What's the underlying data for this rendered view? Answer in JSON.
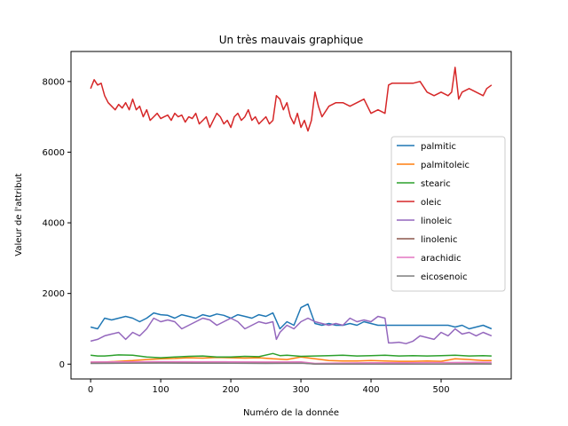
{
  "chart_data": {
    "type": "line",
    "title": "Un très mauvais graphique",
    "xlabel": "Numéro de la donnée",
    "ylabel": "Valeur de l'attribut",
    "xlim": [
      -28,
      600
    ],
    "ylim": [
      -420,
      8850
    ],
    "xticks": [
      0,
      100,
      200,
      300,
      400,
      500
    ],
    "yticks": [
      0,
      2000,
      4000,
      6000,
      8000
    ],
    "grid": false,
    "legend_position": "center-right",
    "series": [
      {
        "name": "palmitic",
        "color": "#1f77b4",
        "x": [
          0,
          10,
          20,
          30,
          40,
          50,
          60,
          70,
          80,
          90,
          100,
          110,
          120,
          130,
          140,
          150,
          160,
          170,
          180,
          190,
          200,
          210,
          220,
          230,
          240,
          250,
          260,
          270,
          280,
          290,
          300,
          310,
          320,
          330,
          340,
          350,
          360,
          370,
          380,
          390,
          400,
          410,
          420,
          430,
          440,
          450,
          460,
          470,
          480,
          490,
          500,
          510,
          520,
          530,
          540,
          550,
          560,
          572
        ],
        "y": [
          1050,
          1000,
          1300,
          1250,
          1300,
          1350,
          1300,
          1200,
          1300,
          1450,
          1400,
          1380,
          1300,
          1400,
          1350,
          1300,
          1400,
          1350,
          1420,
          1380,
          1300,
          1400,
          1350,
          1300,
          1400,
          1350,
          1450,
          1000,
          1200,
          1100,
          1600,
          1700,
          1150,
          1100,
          1150,
          1100,
          1100,
          1150,
          1100,
          1200,
          1150,
          1100,
          1100,
          1100,
          1100,
          1100,
          1100,
          1100,
          1100,
          1100,
          1100,
          1100,
          1050,
          1100,
          1000,
          1050,
          1100,
          1000
        ]
      },
      {
        "name": "palmitoleic",
        "color": "#ff7f0e",
        "x": [
          0,
          20,
          40,
          60,
          80,
          100,
          120,
          140,
          160,
          180,
          200,
          220,
          240,
          260,
          280,
          300,
          320,
          340,
          360,
          380,
          400,
          420,
          440,
          460,
          480,
          500,
          520,
          540,
          560,
          572
        ],
        "y": [
          50,
          60,
          80,
          100,
          130,
          150,
          160,
          180,
          170,
          190,
          180,
          170,
          180,
          150,
          130,
          200,
          150,
          100,
          90,
          90,
          100,
          90,
          80,
          80,
          90,
          80,
          150,
          130,
          100,
          100
        ]
      },
      {
        "name": "stearic",
        "color": "#2ca02c",
        "x": [
          0,
          10,
          20,
          40,
          60,
          80,
          100,
          120,
          140,
          160,
          180,
          200,
          220,
          240,
          260,
          270,
          280,
          300,
          320,
          340,
          360,
          380,
          400,
          420,
          440,
          460,
          480,
          500,
          520,
          540,
          560,
          572
        ],
        "y": [
          250,
          230,
          230,
          260,
          250,
          200,
          180,
          200,
          220,
          230,
          200,
          200,
          220,
          210,
          300,
          240,
          250,
          220,
          230,
          240,
          250,
          230,
          240,
          250,
          230,
          240,
          230,
          240,
          250,
          230,
          240,
          230
        ]
      },
      {
        "name": "oleic",
        "color": "#d62728",
        "x": [
          0,
          5,
          10,
          15,
          20,
          25,
          30,
          35,
          40,
          45,
          50,
          55,
          60,
          65,
          70,
          75,
          80,
          85,
          90,
          95,
          100,
          105,
          110,
          115,
          120,
          125,
          130,
          135,
          140,
          145,
          150,
          155,
          160,
          165,
          170,
          175,
          180,
          185,
          190,
          195,
          200,
          205,
          210,
          215,
          220,
          225,
          230,
          235,
          240,
          245,
          250,
          255,
          260,
          265,
          270,
          275,
          280,
          285,
          290,
          295,
          300,
          305,
          310,
          315,
          320,
          325,
          330,
          340,
          350,
          360,
          370,
          380,
          390,
          400,
          410,
          420,
          425,
          430,
          440,
          450,
          460,
          470,
          480,
          490,
          500,
          510,
          515,
          520,
          525,
          530,
          540,
          550,
          560,
          565,
          572
        ],
        "y": [
          7800,
          8050,
          7900,
          7950,
          7600,
          7400,
          7300,
          7200,
          7350,
          7250,
          7400,
          7200,
          7500,
          7200,
          7300,
          7000,
          7200,
          6900,
          7000,
          7100,
          6950,
          7000,
          7050,
          6900,
          7100,
          7000,
          7050,
          6850,
          7000,
          6950,
          7100,
          6800,
          6900,
          7000,
          6700,
          6900,
          7100,
          7000,
          6800,
          6900,
          6700,
          7000,
          7100,
          6900,
          7000,
          7200,
          6900,
          7000,
          6800,
          6900,
          7000,
          6800,
          6900,
          7600,
          7500,
          7200,
          7400,
          7000,
          6800,
          7100,
          6700,
          6900,
          6600,
          6900,
          7700,
          7300,
          7000,
          7300,
          7400,
          7400,
          7300,
          7400,
          7500,
          7100,
          7200,
          7100,
          7900,
          7950,
          7950,
          7950,
          7950,
          8000,
          7700,
          7600,
          7700,
          7600,
          7700,
          8400,
          7500,
          7700,
          7800,
          7700,
          7600,
          7800,
          7900
        ]
      },
      {
        "name": "linoleic",
        "color": "#9467bd",
        "x": [
          0,
          10,
          20,
          30,
          40,
          50,
          60,
          70,
          80,
          90,
          100,
          110,
          120,
          130,
          140,
          150,
          160,
          170,
          180,
          190,
          200,
          210,
          220,
          230,
          240,
          250,
          260,
          265,
          270,
          280,
          290,
          300,
          310,
          320,
          330,
          340,
          350,
          360,
          370,
          380,
          390,
          400,
          410,
          420,
          425,
          430,
          440,
          450,
          460,
          470,
          480,
          490,
          500,
          510,
          520,
          530,
          540,
          550,
          560,
          572
        ],
        "y": [
          650,
          700,
          800,
          850,
          900,
          700,
          900,
          800,
          1000,
          1300,
          1200,
          1250,
          1200,
          1000,
          1100,
          1200,
          1300,
          1250,
          1100,
          1200,
          1300,
          1200,
          1000,
          1100,
          1200,
          1150,
          1200,
          700,
          900,
          1100,
          1000,
          1200,
          1300,
          1200,
          1150,
          1100,
          1150,
          1100,
          1300,
          1200,
          1250,
          1200,
          1350,
          1300,
          600,
          600,
          620,
          580,
          650,
          800,
          750,
          700,
          900,
          800,
          1000,
          850,
          900,
          800,
          900,
          800
        ]
      },
      {
        "name": "linolenic",
        "color": "#8c564b",
        "x": [
          0,
          50,
          100,
          150,
          200,
          250,
          300,
          320,
          350,
          400,
          450,
          500,
          550,
          572
        ],
        "y": [
          30,
          35,
          40,
          38,
          35,
          30,
          35,
          5,
          5,
          3,
          3,
          5,
          10,
          8
        ]
      },
      {
        "name": "arachidic",
        "color": "#e377c2",
        "x": [
          0,
          50,
          100,
          150,
          200,
          250,
          300,
          320,
          350,
          400,
          450,
          500,
          550,
          572
        ],
        "y": [
          60,
          65,
          70,
          68,
          65,
          60,
          65,
          20,
          30,
          40,
          40,
          45,
          50,
          50
        ]
      },
      {
        "name": "eicosenoic",
        "color": "#7f7f7f",
        "x": [
          0,
          50,
          100,
          150,
          200,
          250,
          300,
          320,
          350,
          400,
          450,
          500,
          550,
          572
        ],
        "y": [
          20,
          25,
          30,
          28,
          25,
          20,
          25,
          5,
          5,
          3,
          3,
          3,
          5,
          5
        ]
      }
    ]
  }
}
